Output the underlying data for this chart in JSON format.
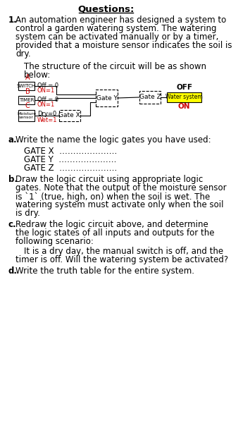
{
  "title": "Questions:",
  "bg_color": "#ffffff",
  "text_color": "#000000",
  "red_color": "#cc0000",
  "yellow_bg": "#ffff00",
  "circuit": {
    "A_label": "A",
    "switch_label": "SWITCH",
    "switch_off": "Off = 0",
    "switch_on": "ON=1",
    "B_label": "B",
    "timer_label": "TIMER",
    "timer_off": "Off = 0",
    "timer_on": "ON=1",
    "C_label": "C",
    "moisture_label": "Moisture\nsensor",
    "moisture_dry": "Dry=0",
    "moisture_wet": "Wet=1",
    "gate_x": "Gate X",
    "gate_y": "Gate Y",
    "gate_z": "Gate Z",
    "output_off": "OFF",
    "output_on": "ON",
    "watering_label": "Water system"
  },
  "q1_lines": [
    "An automation engineer has designed a system to",
    "control a garden watering system. The watering",
    "system can be activated manually or by a timer,",
    "provided that a moisture sensor indicates the soil is",
    "dry."
  ],
  "circuit_intro_lines": [
    "The structure of the circuit will be as shown",
    "below:"
  ],
  "qa_line": "Write the name the logic gates you have used:",
  "gate_x_label": "GATE X  …………………",
  "gate_y_label": "GATE Y  …………………",
  "gate_z_label": "GATE Z  …………………",
  "qb_lines": [
    "Draw the logic circuit using appropriate logic",
    "gates. Note that the output of the moisture sensor",
    "is `1` (true, high, on) when the soil is wet. The",
    "watering system must activate only when the soil",
    "is dry."
  ],
  "qc_lines": [
    "Redraw the logic circuit above, and determine",
    "the logic states of all inputs and outputs for the",
    "following scenario:"
  ],
  "qc_scenario_lines": [
    "It is a dry day, the manual switch is off, and the",
    "timer is off. Will the watering system be activated?"
  ],
  "qd_line": "Write the truth table for the entire system."
}
